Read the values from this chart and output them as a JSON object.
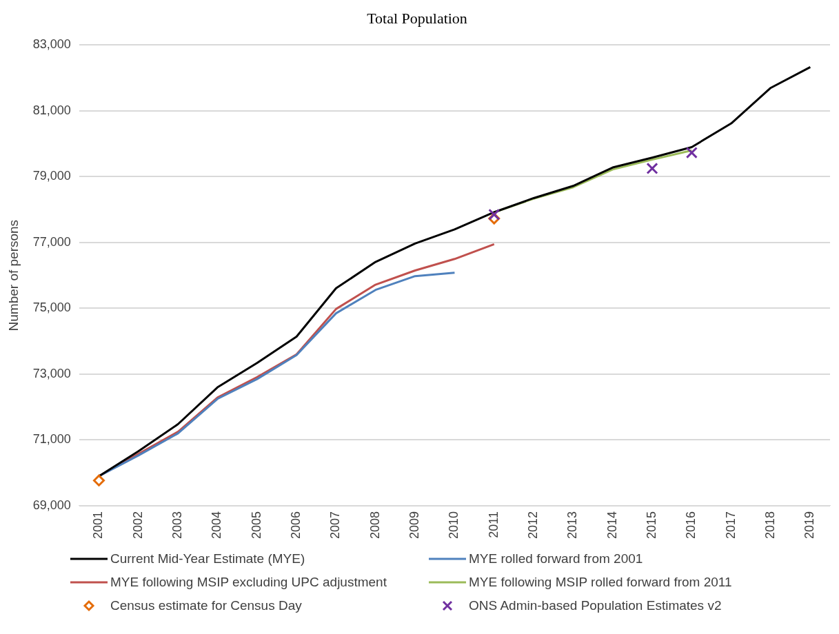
{
  "chart_data": {
    "type": "line",
    "title": "Total Population",
    "ylabel": "Number of persons",
    "categories": [
      "2001",
      "2002",
      "2003",
      "2004",
      "2005",
      "2006",
      "2007",
      "2008",
      "2009",
      "2010",
      "2011",
      "2012",
      "2013",
      "2014",
      "2015",
      "2016",
      "2017",
      "2018",
      "2019"
    ],
    "ylim": [
      69000,
      83000
    ],
    "yticks": [
      {
        "value": 69000,
        "label": "69,000"
      },
      {
        "value": 71000,
        "label": "71,000"
      },
      {
        "value": 73000,
        "label": "73,000"
      },
      {
        "value": 75000,
        "label": "75,000"
      },
      {
        "value": 77000,
        "label": "77,000"
      },
      {
        "value": 79000,
        "label": "79,000"
      },
      {
        "value": 81000,
        "label": "81,000"
      },
      {
        "value": 83000,
        "label": "83,000"
      }
    ],
    "grid": "y",
    "legend": "bottom",
    "line_style": "solid",
    "series": [
      {
        "name": "Current Mid-Year Estimate (MYE)",
        "color": "#000000",
        "marker": "none",
        "values": [
          69900,
          70660,
          71480,
          72600,
          73340,
          74140,
          75610,
          76410,
          76970,
          77400,
          77920,
          78350,
          78720,
          79280,
          79580,
          79900,
          80620,
          81700,
          82330
        ]
      },
      {
        "name": "MYE rolled forward from 2001",
        "color": "#4f81bd",
        "marker": "none",
        "values": [
          69900,
          70530,
          71200,
          72250,
          72850,
          73580,
          74850,
          75560,
          75980,
          76080,
          null,
          null,
          null,
          null,
          null,
          null,
          null,
          null,
          null
        ]
      },
      {
        "name": "MYE following MSIP excluding UPC adjustment",
        "color": "#c0504d",
        "marker": "none",
        "values": [
          69900,
          70580,
          71250,
          72290,
          72910,
          73600,
          74980,
          75720,
          76150,
          76500,
          76950,
          null,
          null,
          null,
          null,
          null,
          null,
          null,
          null
        ]
      },
      {
        "name": "MYE following MSIP rolled forward from 2011",
        "color": "#9bbb59",
        "marker": "none",
        "values": [
          null,
          null,
          null,
          null,
          null,
          null,
          null,
          null,
          null,
          null,
          77920,
          78330,
          78680,
          79220,
          79520,
          79800,
          null,
          null,
          null
        ]
      },
      {
        "name": "Census estimate for Census Day",
        "type": "scatter",
        "color": "#e46c0a",
        "marker": "diamond",
        "values": [
          69770,
          null,
          null,
          null,
          null,
          null,
          null,
          null,
          null,
          null,
          77730,
          null,
          null,
          null,
          null,
          null,
          null,
          null,
          null
        ]
      },
      {
        "name": "ONS Admin-based Population Estimates v2",
        "type": "scatter",
        "color": "#7030a0",
        "marker": "cross",
        "values": [
          null,
          null,
          null,
          null,
          null,
          null,
          null,
          null,
          null,
          null,
          77850,
          null,
          null,
          null,
          79250,
          79730,
          null,
          null,
          null
        ]
      }
    ]
  }
}
